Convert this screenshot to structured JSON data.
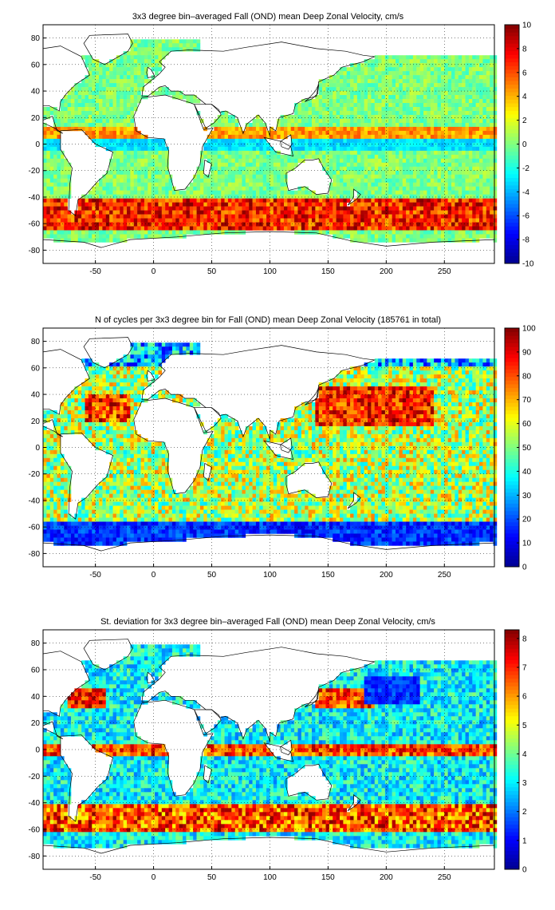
{
  "colormap": [
    "#00008f",
    "#0000ff",
    "#0080ff",
    "#00ffff",
    "#80ff80",
    "#ffff00",
    "#ff8000",
    "#ff0000",
    "#800000"
  ],
  "land_color": "#ffffff",
  "chart_data": [
    {
      "type": "heatmap",
      "title": "3x3 degree bin–averaged Fall (OND) mean Deep Zonal Velocity, cm/s",
      "xlim": [
        -95,
        293
      ],
      "ylim": [
        -90,
        90
      ],
      "x_ticks": [
        -50,
        0,
        50,
        100,
        150,
        200,
        250
      ],
      "y_ticks": [
        -80,
        -60,
        -40,
        -20,
        0,
        20,
        40,
        60,
        80
      ],
      "grid": true,
      "clim": [
        -10,
        10
      ],
      "colorbar_ticks": [
        -10,
        -8,
        -6,
        -4,
        -2,
        0,
        2,
        4,
        6,
        8,
        10
      ],
      "colorbar_position": "right",
      "bin_size_deg": 3,
      "field": "velocity",
      "typical_range": "-2 to 2 over most ocean; -4 to -2 westward bands near equator; 4 to 10 eastward in Antarctic Circumpolar Current (45S-60S)"
    },
    {
      "type": "heatmap",
      "title": "N of cycles per 3x3 degree bin for Fall (OND) mean Deep Zonal Velocity (185761 in total)",
      "xlim": [
        -95,
        293
      ],
      "ylim": [
        -90,
        90
      ],
      "x_ticks": [
        -50,
        0,
        50,
        100,
        150,
        200,
        250
      ],
      "y_ticks": [
        -80,
        -60,
        -40,
        -20,
        0,
        20,
        40,
        60,
        80
      ],
      "grid": true,
      "clim": [
        0,
        100
      ],
      "colorbar_ticks": [
        0,
        10,
        20,
        30,
        40,
        50,
        60,
        70,
        80,
        90,
        100
      ],
      "colorbar_position": "right",
      "bin_size_deg": 3,
      "field": "counts",
      "total_cycles": 185761,
      "typical_range": "60-100 in subtropical gyres and western Pacific; 10-30 in Southern Ocean and coastal margins"
    },
    {
      "type": "heatmap",
      "title": "St. deviation for 3x3 degree bin–averaged Fall (OND) mean Deep Zonal Velocity, cm/s",
      "xlim": [
        -95,
        293
      ],
      "ylim": [
        -90,
        90
      ],
      "x_ticks": [
        -50,
        0,
        50,
        100,
        150,
        200,
        250
      ],
      "y_ticks": [
        -80,
        -60,
        -40,
        -20,
        0,
        20,
        40,
        60,
        80
      ],
      "grid": true,
      "clim": [
        0,
        8.3
      ],
      "colorbar_ticks": [
        0,
        1,
        2,
        3,
        4,
        5,
        6,
        7,
        8
      ],
      "colorbar_position": "right",
      "bin_size_deg": 3,
      "field": "stddev",
      "typical_range": "2-4 in gyre interiors; 6-8 along equator, Gulf Stream, Kuroshio, Agulhas and Antarctic Circumpolar Current; 1-2 in central North Pacific"
    }
  ]
}
